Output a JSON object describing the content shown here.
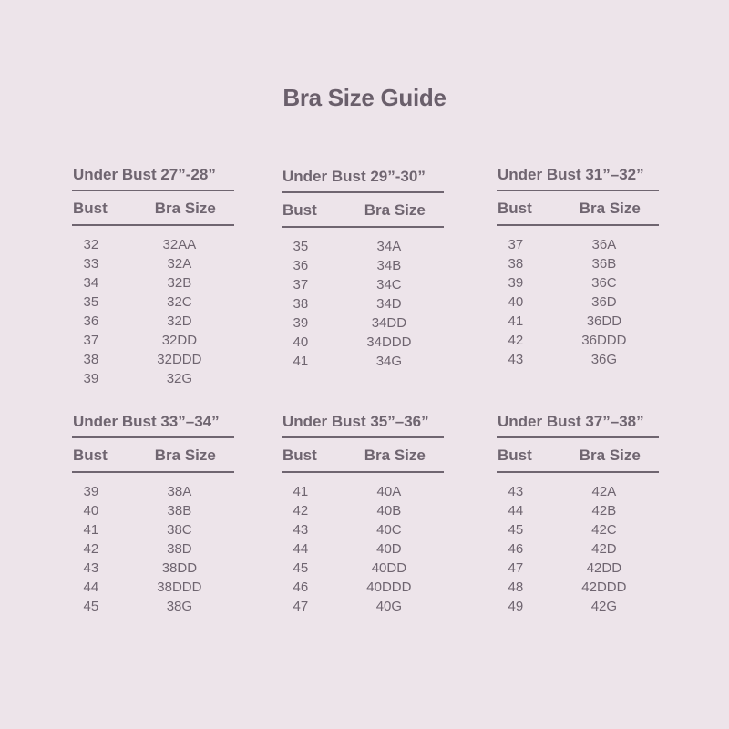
{
  "title": "Bra Size Guide",
  "tables": [
    {
      "heading": "Under Bust 27”-28”",
      "col_bust": "Bust",
      "col_size": "Bra Size",
      "rows": [
        [
          "32",
          "32AA"
        ],
        [
          "33",
          "32A"
        ],
        [
          "34",
          "32B"
        ],
        [
          "35",
          "32C"
        ],
        [
          "36",
          "32D"
        ],
        [
          "37",
          "32DD"
        ],
        [
          "38",
          "32DDD"
        ],
        [
          "39",
          "32G"
        ]
      ]
    },
    {
      "heading": "Under Bust 29”-30”",
      "col_bust": "Bust",
      "col_size": "Bra Size",
      "rows": [
        [
          "35",
          "34A"
        ],
        [
          "36",
          "34B"
        ],
        [
          "37",
          "34C"
        ],
        [
          "38",
          "34D"
        ],
        [
          "39",
          "34DD"
        ],
        [
          "40",
          "34DDD"
        ],
        [
          "41",
          "34G"
        ]
      ]
    },
    {
      "heading": "Under Bust 31”–32”",
      "col_bust": "Bust",
      "col_size": "Bra Size",
      "rows": [
        [
          "37",
          "36A"
        ],
        [
          "38",
          "36B"
        ],
        [
          "39",
          "36C"
        ],
        [
          "40",
          "36D"
        ],
        [
          "41",
          "36DD"
        ],
        [
          "42",
          "36DDD"
        ],
        [
          "43",
          "36G"
        ]
      ]
    },
    {
      "heading": "Under Bust 33”–34”",
      "col_bust": "Bust",
      "col_size": "Bra Size",
      "rows": [
        [
          "39",
          "38A"
        ],
        [
          "40",
          "38B"
        ],
        [
          "41",
          "38C"
        ],
        [
          "42",
          "38D"
        ],
        [
          "43",
          "38DD"
        ],
        [
          "44",
          "38DDD"
        ],
        [
          "45",
          "38G"
        ]
      ]
    },
    {
      "heading": "Under Bust 35”–36”",
      "col_bust": "Bust",
      "col_size": "Bra Size",
      "rows": [
        [
          "41",
          "40A"
        ],
        [
          "42",
          "40B"
        ],
        [
          "43",
          "40C"
        ],
        [
          "44",
          "40D"
        ],
        [
          "45",
          "40DD"
        ],
        [
          "46",
          "40DDD"
        ],
        [
          "47",
          "40G"
        ]
      ]
    },
    {
      "heading": "Under Bust 37”–38”",
      "col_bust": "Bust",
      "col_size": "Bra Size",
      "rows": [
        [
          "43",
          "42A"
        ],
        [
          "44",
          "42B"
        ],
        [
          "45",
          "42C"
        ],
        [
          "46",
          "42D"
        ],
        [
          "47",
          "42DD"
        ],
        [
          "48",
          "42DDD"
        ],
        [
          "49",
          "42G"
        ]
      ]
    }
  ]
}
